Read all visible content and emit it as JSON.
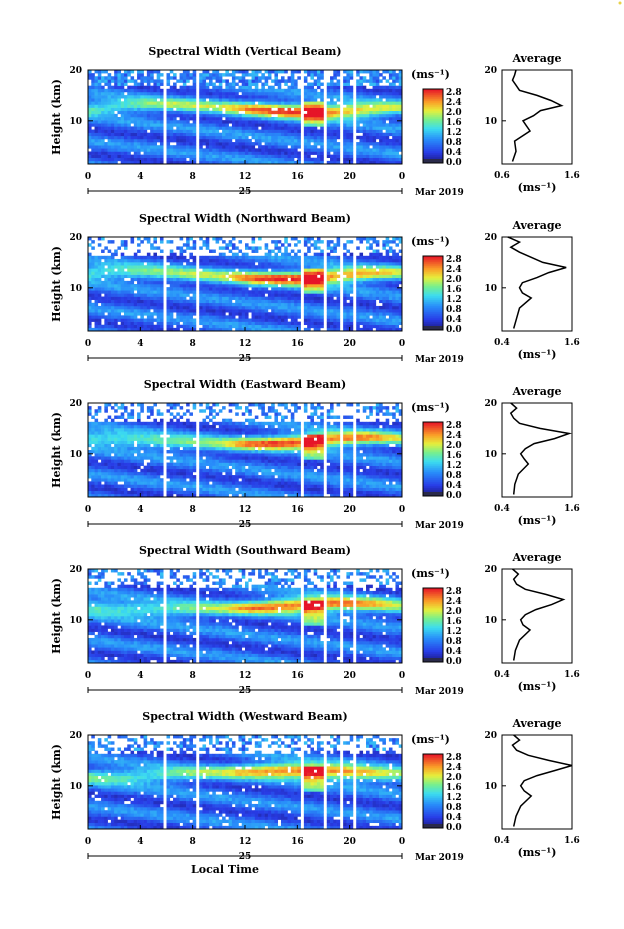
{
  "chart_data": [
    {
      "type": "heatmap",
      "title": "Spectral Width (Vertical Beam)",
      "ylabel": "Height (km)",
      "y_ticks": [
        "20",
        "10"
      ],
      "x_ticks": [
        "0",
        "4",
        "8",
        "12",
        "16",
        "20",
        "0"
      ],
      "day_label": "25",
      "date_label": "Mar 2019",
      "colorbar": {
        "unit": "(ms⁻¹)",
        "ticks": [
          "2.8",
          "2.4",
          "2.0",
          "1.6",
          "1.2",
          "0.8",
          "0.4",
          "0.0"
        ]
      },
      "gaps_hours": [
        [
          5.8,
          6.0
        ],
        [
          8.2,
          8.4
        ],
        [
          16.2,
          16.5
        ],
        [
          18.0,
          18.2
        ],
        [
          19.2,
          19.5
        ],
        [
          20.2,
          20.5
        ]
      ],
      "average": {
        "title": "Average",
        "xlabel": "(ms⁻¹)",
        "x_ticks": [
          "0.6",
          "1.6"
        ],
        "y_ticks": [
          "20",
          "10"
        ],
        "xlim": [
          0.6,
          1.6
        ],
        "heights_km": [
          2,
          4,
          6,
          8,
          9,
          10,
          11,
          12,
          13,
          14,
          15,
          16,
          17,
          18,
          19,
          20
        ],
        "values": [
          0.75,
          0.8,
          0.78,
          1.0,
          0.95,
          0.9,
          1.05,
          1.15,
          1.45,
          1.3,
          1.1,
          0.85,
          0.8,
          0.75,
          0.78,
          0.8
        ]
      }
    },
    {
      "type": "heatmap",
      "title": "Spectral Width (Northward Beam)",
      "ylabel": "Height (km)",
      "y_ticks": [
        "20",
        "10"
      ],
      "x_ticks": [
        "0",
        "4",
        "8",
        "12",
        "16",
        "20",
        "0"
      ],
      "day_label": "25",
      "date_label": "Mar 2019",
      "colorbar": {
        "unit": "(ms⁻¹)",
        "ticks": [
          "2.8",
          "2.4",
          "2.0",
          "1.6",
          "1.2",
          "0.8",
          "0.4",
          "0.0"
        ]
      },
      "gaps_hours": [
        [
          5.8,
          6.0
        ],
        [
          8.2,
          8.4
        ],
        [
          16.2,
          16.5
        ],
        [
          18.0,
          18.2
        ],
        [
          19.2,
          19.5
        ],
        [
          20.2,
          20.5
        ]
      ],
      "average": {
        "title": "Average",
        "xlabel": "(ms⁻¹)",
        "x_ticks": [
          "0.4",
          "1.6"
        ],
        "y_ticks": [
          "20",
          "10"
        ],
        "xlim": [
          0.4,
          1.6
        ],
        "heights_km": [
          2,
          4,
          6,
          8,
          9,
          10,
          11,
          12,
          13,
          14,
          15,
          16,
          17,
          18,
          19,
          20
        ],
        "values": [
          0.6,
          0.65,
          0.7,
          0.9,
          0.75,
          0.7,
          0.75,
          1.0,
          1.2,
          1.5,
          1.1,
          0.9,
          0.7,
          0.55,
          0.7,
          0.5
        ]
      }
    },
    {
      "type": "heatmap",
      "title": "Spectral Width (Eastward Beam)",
      "ylabel": "Height (km)",
      "y_ticks": [
        "20",
        "10"
      ],
      "x_ticks": [
        "0",
        "4",
        "8",
        "12",
        "16",
        "20",
        "0"
      ],
      "day_label": "25",
      "date_label": "Mar 2019",
      "colorbar": {
        "unit": "(ms⁻¹)",
        "ticks": [
          "2.8",
          "2.4",
          "2.0",
          "1.6",
          "1.2",
          "0.8",
          "0.4",
          "0.0"
        ]
      },
      "gaps_hours": [
        [
          5.8,
          6.0
        ],
        [
          8.2,
          8.4
        ],
        [
          16.2,
          16.5
        ],
        [
          18.0,
          18.2
        ],
        [
          19.2,
          19.5
        ],
        [
          20.2,
          20.5
        ]
      ],
      "average": {
        "title": "Average",
        "xlabel": "(ms⁻¹)",
        "x_ticks": [
          "0.4",
          "1.6"
        ],
        "y_ticks": [
          "20",
          "10"
        ],
        "xlim": [
          0.4,
          1.6
        ],
        "heights_km": [
          2,
          4,
          6,
          8,
          9,
          10,
          11,
          12,
          13,
          14,
          15,
          16,
          17,
          18,
          19,
          20
        ],
        "values": [
          0.6,
          0.62,
          0.68,
          0.85,
          0.78,
          0.72,
          0.8,
          0.95,
          1.3,
          1.55,
          1.05,
          0.7,
          0.6,
          0.55,
          0.65,
          0.55
        ]
      }
    },
    {
      "type": "heatmap",
      "title": "Spectral Width (Southward Beam)",
      "ylabel": "Height (km)",
      "y_ticks": [
        "20",
        "10"
      ],
      "x_ticks": [
        "0",
        "4",
        "8",
        "12",
        "16",
        "20",
        "0"
      ],
      "day_label": "25",
      "date_label": "Mar 2019",
      "colorbar": {
        "unit": "(ms⁻¹)",
        "ticks": [
          "2.8",
          "2.4",
          "2.0",
          "1.6",
          "1.2",
          "0.8",
          "0.4",
          "0.0"
        ]
      },
      "gaps_hours": [
        [
          5.8,
          6.0
        ],
        [
          8.2,
          8.4
        ],
        [
          16.2,
          16.5
        ],
        [
          18.0,
          18.2
        ],
        [
          19.2,
          19.5
        ],
        [
          20.2,
          20.5
        ]
      ],
      "average": {
        "title": "Average",
        "xlabel": "(ms⁻¹)",
        "x_ticks": [
          "0.4",
          "1.6"
        ],
        "y_ticks": [
          "20",
          "10"
        ],
        "xlim": [
          0.4,
          1.6
        ],
        "heights_km": [
          2,
          4,
          6,
          8,
          9,
          10,
          11,
          12,
          13,
          14,
          15,
          16,
          17,
          18,
          19,
          20
        ],
        "values": [
          0.6,
          0.63,
          0.7,
          0.88,
          0.76,
          0.72,
          0.8,
          0.98,
          1.25,
          1.45,
          1.15,
          0.8,
          0.65,
          0.6,
          0.68,
          0.58
        ]
      }
    },
    {
      "type": "heatmap",
      "title": "Spectral Width (Westward Beam)",
      "ylabel": "Height (km)",
      "y_ticks": [
        "20",
        "10"
      ],
      "x_ticks": [
        "0",
        "4",
        "8",
        "12",
        "16",
        "20",
        "0"
      ],
      "day_label": "25",
      "date_label": "Mar 2019",
      "xlabel": "Local Time",
      "colorbar": {
        "unit": "(ms⁻¹)",
        "ticks": [
          "2.8",
          "2.4",
          "2.0",
          "1.6",
          "1.2",
          "0.8",
          "0.4",
          "0.0"
        ]
      },
      "gaps_hours": [
        [
          5.8,
          6.0
        ],
        [
          8.2,
          8.4
        ],
        [
          16.2,
          16.5
        ],
        [
          18.0,
          18.2
        ],
        [
          19.2,
          19.5
        ],
        [
          20.2,
          20.5
        ]
      ],
      "average": {
        "title": "Average",
        "xlabel": "(ms⁻¹)",
        "x_ticks": [
          "0.4",
          "1.6"
        ],
        "y_ticks": [
          "20",
          "10"
        ],
        "xlim": [
          0.4,
          1.6
        ],
        "heights_km": [
          2,
          4,
          6,
          8,
          9,
          10,
          11,
          12,
          13,
          14,
          15,
          16,
          17,
          18,
          19,
          20
        ],
        "values": [
          0.6,
          0.64,
          0.72,
          0.9,
          0.78,
          0.72,
          0.78,
          1.0,
          1.3,
          1.6,
          1.2,
          0.85,
          0.65,
          0.58,
          0.7,
          0.6
        ]
      }
    }
  ]
}
